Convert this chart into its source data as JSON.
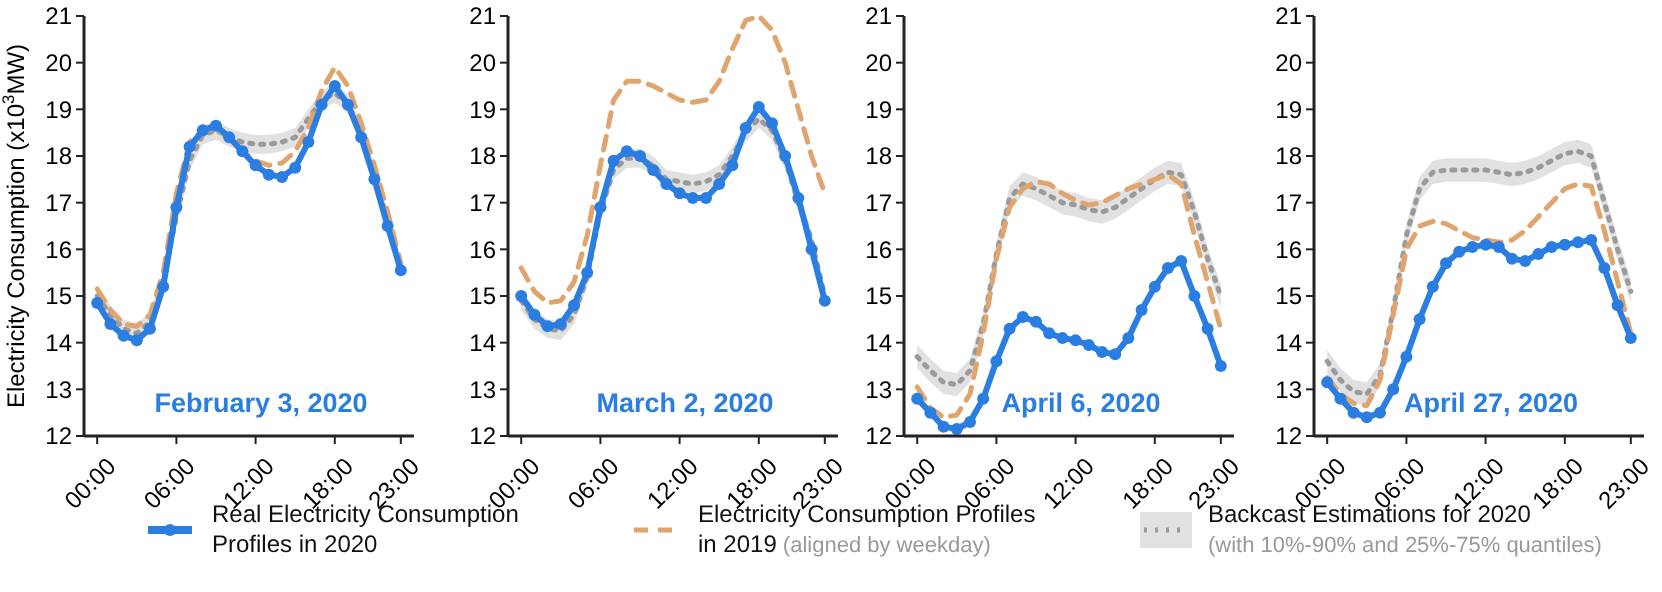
{
  "chart_data": [
    {
      "type": "line",
      "title": "February 3, 2020",
      "ylabel": "Electricity Consumption (x10$^{3}$MW)",
      "x": [
        0,
        1,
        2,
        3,
        4,
        5,
        6,
        7,
        8,
        9,
        10,
        11,
        12,
        13,
        14,
        15,
        16,
        17,
        18,
        19,
        20,
        21,
        22,
        23
      ],
      "xlim": [
        -1,
        24
      ],
      "xticks": [
        {
          "value": 0,
          "label": "00:00"
        },
        {
          "value": 6,
          "label": "06:00"
        },
        {
          "value": 12,
          "label": "12:00"
        },
        {
          "value": 18,
          "label": "18:00"
        },
        {
          "value": 23,
          "label": "23:00"
        }
      ],
      "ylim": [
        12,
        21
      ],
      "yticks": [
        12,
        13,
        14,
        15,
        16,
        17,
        18,
        19,
        20,
        21
      ],
      "legend": "bottom",
      "series": [
        {
          "name": "Backcast Estimations for 2020 (with 10%-90% and 25%-75% quantiles)",
          "color": "#9a9a9a",
          "line_style": "dotted",
          "marker": "none",
          "values": [
            15.0,
            14.6,
            14.3,
            14.2,
            14.45,
            15.3,
            16.7,
            17.9,
            18.45,
            18.55,
            18.4,
            18.3,
            18.25,
            18.25,
            18.3,
            18.4,
            18.8,
            19.2,
            19.35,
            19.1,
            18.5,
            17.6,
            16.6,
            15.6
          ],
          "lower": [
            14.8,
            14.4,
            14.1,
            14.0,
            14.25,
            15.1,
            16.5,
            17.7,
            18.25,
            18.35,
            18.2,
            18.1,
            18.05,
            18.05,
            18.1,
            18.2,
            18.6,
            19.0,
            19.15,
            18.9,
            18.3,
            17.4,
            16.4,
            15.4
          ],
          "upper": [
            15.2,
            14.8,
            14.5,
            14.4,
            14.65,
            15.5,
            16.9,
            18.1,
            18.65,
            18.75,
            18.6,
            18.5,
            18.45,
            18.45,
            18.5,
            18.6,
            19.0,
            19.4,
            19.55,
            19.3,
            18.7,
            17.8,
            16.8,
            15.8
          ]
        },
        {
          "name": "Electricity Consumption Profiles in 2019 (aligned by weekday)",
          "color": "#e0a46e",
          "line_style": "dashed",
          "marker": "none",
          "values": [
            15.15,
            14.7,
            14.4,
            14.35,
            14.6,
            15.5,
            17.2,
            18.3,
            18.55,
            18.6,
            18.35,
            18.1,
            17.9,
            17.8,
            17.85,
            18.1,
            18.6,
            19.4,
            19.9,
            19.5,
            18.7,
            17.8,
            16.8,
            15.7
          ]
        },
        {
          "name": "Real Electricity Consumption Profiles in 2020",
          "color": "#2a7de1",
          "line_style": "solid",
          "marker": "circle",
          "values": [
            14.85,
            14.4,
            14.15,
            14.05,
            14.3,
            15.2,
            16.9,
            18.2,
            18.55,
            18.65,
            18.4,
            18.1,
            17.8,
            17.6,
            17.55,
            17.75,
            18.3,
            19.1,
            19.5,
            19.1,
            18.4,
            17.5,
            16.5,
            15.55
          ]
        }
      ]
    },
    {
      "type": "line",
      "title": "March 2, 2020",
      "x": [
        0,
        1,
        2,
        3,
        4,
        5,
        6,
        7,
        8,
        9,
        10,
        11,
        12,
        13,
        14,
        15,
        16,
        17,
        18,
        19,
        20,
        21,
        22,
        23
      ],
      "xlim": [
        -1,
        24
      ],
      "xticks": [
        {
          "value": 0,
          "label": "00:00"
        },
        {
          "value": 6,
          "label": "06:00"
        },
        {
          "value": 12,
          "label": "12:00"
        },
        {
          "value": 18,
          "label": "18:00"
        },
        {
          "value": 23,
          "label": "23:00"
        }
      ],
      "ylim": [
        12,
        21
      ],
      "yticks": [
        12,
        13,
        14,
        15,
        16,
        17,
        18,
        19,
        20,
        21
      ],
      "series": [
        {
          "color": "#9a9a9a",
          "line_style": "dotted",
          "marker": "none",
          "values": [
            14.9,
            14.5,
            14.3,
            14.25,
            14.6,
            15.4,
            16.8,
            17.7,
            17.95,
            17.95,
            17.8,
            17.5,
            17.45,
            17.4,
            17.45,
            17.6,
            18.0,
            18.5,
            18.8,
            18.55,
            17.9,
            17.0,
            16.2,
            15.0
          ],
          "lower": [
            14.7,
            14.3,
            14.1,
            14.05,
            14.4,
            15.2,
            16.6,
            17.5,
            17.75,
            17.75,
            17.6,
            17.3,
            17.25,
            17.2,
            17.25,
            17.4,
            17.8,
            18.3,
            18.6,
            18.35,
            17.7,
            16.8,
            16.0,
            14.8
          ],
          "upper": [
            15.1,
            14.7,
            14.5,
            14.45,
            14.8,
            15.6,
            17.0,
            17.9,
            18.15,
            18.15,
            18.0,
            17.7,
            17.65,
            17.6,
            17.65,
            17.8,
            18.2,
            18.7,
            19.0,
            18.75,
            18.1,
            17.2,
            16.4,
            15.2
          ]
        },
        {
          "color": "#e0a46e",
          "line_style": "dashed",
          "marker": "none",
          "values": [
            15.6,
            15.1,
            14.85,
            14.9,
            15.3,
            16.3,
            17.8,
            19.2,
            19.6,
            19.6,
            19.5,
            19.35,
            19.2,
            19.15,
            19.2,
            19.6,
            20.3,
            20.9,
            21.0,
            20.7,
            20.0,
            19.0,
            18.0,
            17.2
          ]
        },
        {
          "color": "#2a7de1",
          "line_style": "solid",
          "marker": "circle",
          "values": [
            15.0,
            14.6,
            14.35,
            14.4,
            14.8,
            15.5,
            16.9,
            17.9,
            18.1,
            18.0,
            17.7,
            17.4,
            17.2,
            17.1,
            17.1,
            17.4,
            17.8,
            18.6,
            19.05,
            18.7,
            18.0,
            17.1,
            16.0,
            14.9
          ]
        }
      ]
    },
    {
      "type": "line",
      "title": "April 6, 2020",
      "x": [
        0,
        1,
        2,
        3,
        4,
        5,
        6,
        7,
        8,
        9,
        10,
        11,
        12,
        13,
        14,
        15,
        16,
        17,
        18,
        19,
        20,
        21,
        22,
        23
      ],
      "xlim": [
        -1,
        24
      ],
      "xticks": [
        {
          "value": 0,
          "label": "00:00"
        },
        {
          "value": 6,
          "label": "06:00"
        },
        {
          "value": 12,
          "label": "12:00"
        },
        {
          "value": 18,
          "label": "18:00"
        },
        {
          "value": 23,
          "label": "23:00"
        }
      ],
      "ylim": [
        12,
        21
      ],
      "yticks": [
        12,
        13,
        14,
        15,
        16,
        17,
        18,
        19,
        20,
        21
      ],
      "series": [
        {
          "color": "#9a9a9a",
          "line_style": "dotted",
          "marker": "none",
          "values": [
            13.7,
            13.4,
            13.15,
            13.1,
            13.4,
            14.4,
            15.9,
            17.1,
            17.4,
            17.3,
            17.15,
            17.0,
            16.95,
            16.85,
            16.8,
            16.9,
            17.1,
            17.3,
            17.5,
            17.65,
            17.6,
            16.8,
            15.8,
            15.0
          ],
          "lower": [
            13.45,
            13.15,
            12.9,
            12.85,
            13.15,
            14.15,
            15.65,
            16.85,
            17.15,
            17.05,
            16.9,
            16.75,
            16.7,
            16.6,
            16.55,
            16.65,
            16.85,
            17.05,
            17.25,
            17.4,
            17.35,
            16.55,
            15.55,
            14.75
          ],
          "upper": [
            13.95,
            13.65,
            13.4,
            13.35,
            13.65,
            14.65,
            16.15,
            17.35,
            17.65,
            17.55,
            17.4,
            17.25,
            17.2,
            17.1,
            17.05,
            17.15,
            17.35,
            17.55,
            17.75,
            17.9,
            17.85,
            17.05,
            16.05,
            15.25
          ]
        },
        {
          "color": "#e0a46e",
          "line_style": "dashed",
          "marker": "none",
          "values": [
            13.05,
            12.6,
            12.4,
            12.45,
            12.9,
            14.2,
            15.8,
            16.9,
            17.3,
            17.45,
            17.4,
            17.2,
            17.05,
            16.95,
            17.0,
            17.15,
            17.3,
            17.4,
            17.5,
            17.6,
            17.4,
            16.3,
            15.3,
            14.3
          ]
        },
        {
          "color": "#2a7de1",
          "line_style": "solid",
          "marker": "circle",
          "values": [
            12.8,
            12.5,
            12.2,
            12.15,
            12.3,
            12.8,
            13.6,
            14.3,
            14.55,
            14.45,
            14.2,
            14.1,
            14.05,
            13.95,
            13.8,
            13.75,
            14.1,
            14.7,
            15.2,
            15.6,
            15.75,
            15.0,
            14.3,
            13.5
          ]
        }
      ]
    },
    {
      "type": "line",
      "title": "April 27, 2020",
      "x": [
        0,
        1,
        2,
        3,
        4,
        5,
        6,
        7,
        8,
        9,
        10,
        11,
        12,
        13,
        14,
        15,
        16,
        17,
        18,
        19,
        20,
        21,
        22,
        23
      ],
      "xlim": [
        -1,
        24
      ],
      "xticks": [
        {
          "value": 0,
          "label": "00:00"
        },
        {
          "value": 6,
          "label": "06:00"
        },
        {
          "value": 12,
          "label": "12:00"
        },
        {
          "value": 18,
          "label": "18:00"
        },
        {
          "value": 23,
          "label": "23:00"
        }
      ],
      "ylim": [
        12,
        21
      ],
      "yticks": [
        12,
        13,
        14,
        15,
        16,
        17,
        18,
        19,
        20,
        21
      ],
      "series": [
        {
          "color": "#9a9a9a",
          "line_style": "dotted",
          "marker": "none",
          "values": [
            13.6,
            13.2,
            12.95,
            12.9,
            13.3,
            14.7,
            16.3,
            17.3,
            17.65,
            17.7,
            17.7,
            17.7,
            17.7,
            17.65,
            17.6,
            17.65,
            17.75,
            17.9,
            18.05,
            18.1,
            18.0,
            17.0,
            16.0,
            15.1
          ],
          "lower": [
            13.35,
            12.95,
            12.7,
            12.65,
            13.05,
            14.45,
            16.05,
            17.05,
            17.4,
            17.45,
            17.45,
            17.45,
            17.45,
            17.4,
            17.35,
            17.4,
            17.5,
            17.65,
            17.8,
            17.85,
            17.75,
            16.75,
            15.75,
            14.85
          ],
          "upper": [
            13.85,
            13.45,
            13.2,
            13.15,
            13.55,
            14.95,
            16.55,
            17.55,
            17.9,
            17.95,
            17.95,
            17.95,
            17.95,
            17.9,
            17.85,
            17.9,
            18.0,
            18.15,
            18.3,
            18.35,
            18.25,
            17.25,
            16.25,
            15.35
          ]
        },
        {
          "color": "#e0a46e",
          "line_style": "dashed",
          "marker": "none",
          "values": [
            13.25,
            12.9,
            12.7,
            12.65,
            13.2,
            14.6,
            16.0,
            16.5,
            16.6,
            16.55,
            16.4,
            16.25,
            16.2,
            16.15,
            16.2,
            16.4,
            16.7,
            17.0,
            17.3,
            17.4,
            17.35,
            16.4,
            15.3,
            14.2
          ]
        },
        {
          "color": "#2a7de1",
          "line_style": "solid",
          "marker": "circle",
          "values": [
            13.15,
            12.8,
            12.5,
            12.4,
            12.5,
            13.0,
            13.7,
            14.5,
            15.2,
            15.7,
            15.95,
            16.05,
            16.1,
            16.05,
            15.8,
            15.75,
            15.9,
            16.05,
            16.1,
            16.15,
            16.2,
            15.6,
            14.8,
            14.1
          ]
        }
      ]
    }
  ]
}
